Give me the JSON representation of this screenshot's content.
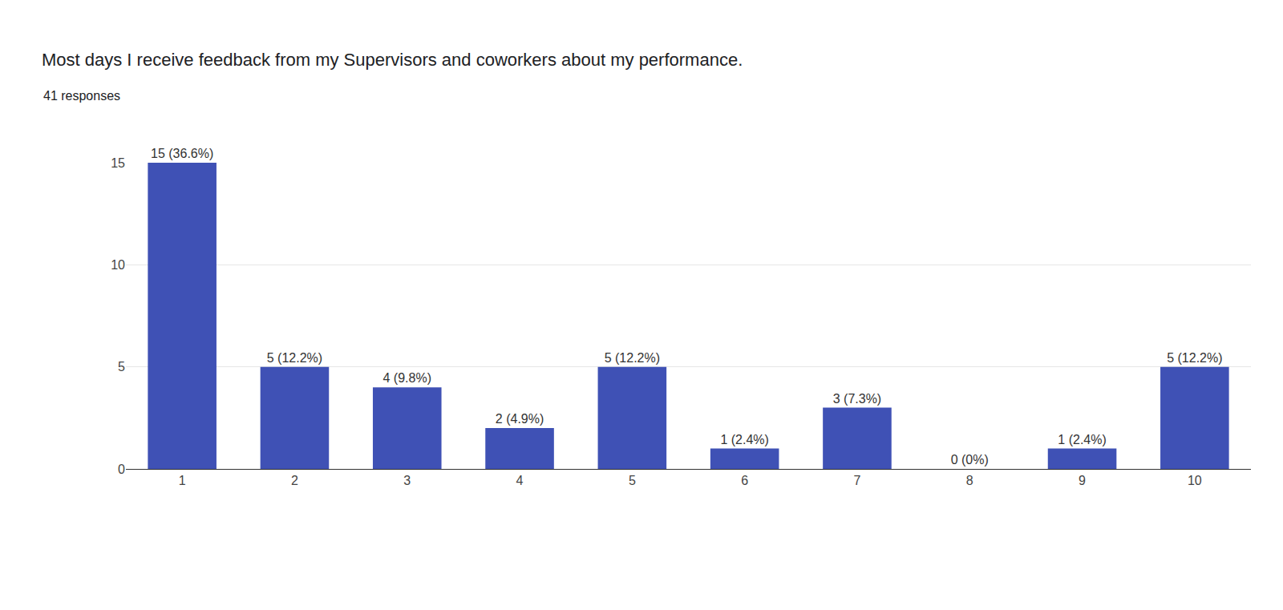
{
  "chart_data": {
    "type": "bar",
    "title": "Most days I receive feedback from my Supervisors and coworkers about my performance.",
    "subtitle": "41 responses",
    "categories": [
      "1",
      "2",
      "3",
      "4",
      "5",
      "6",
      "7",
      "8",
      "9",
      "10"
    ],
    "values": [
      15,
      5,
      4,
      2,
      5,
      1,
      3,
      0,
      1,
      5
    ],
    "value_labels": [
      "15 (36.6%)",
      "5 (12.2%)",
      "4 (9.8%)",
      "2 (4.9%)",
      "5 (12.2%)",
      "1 (2.4%)",
      "3 (7.3%)",
      "0 (0%)",
      "1 (2.4%)",
      "5 (12.2%)"
    ],
    "color": "#3f51b5",
    "ylim": [
      0,
      15
    ],
    "yticks": [
      0,
      5,
      10,
      15
    ],
    "grid": true,
    "data_labels": true
  }
}
